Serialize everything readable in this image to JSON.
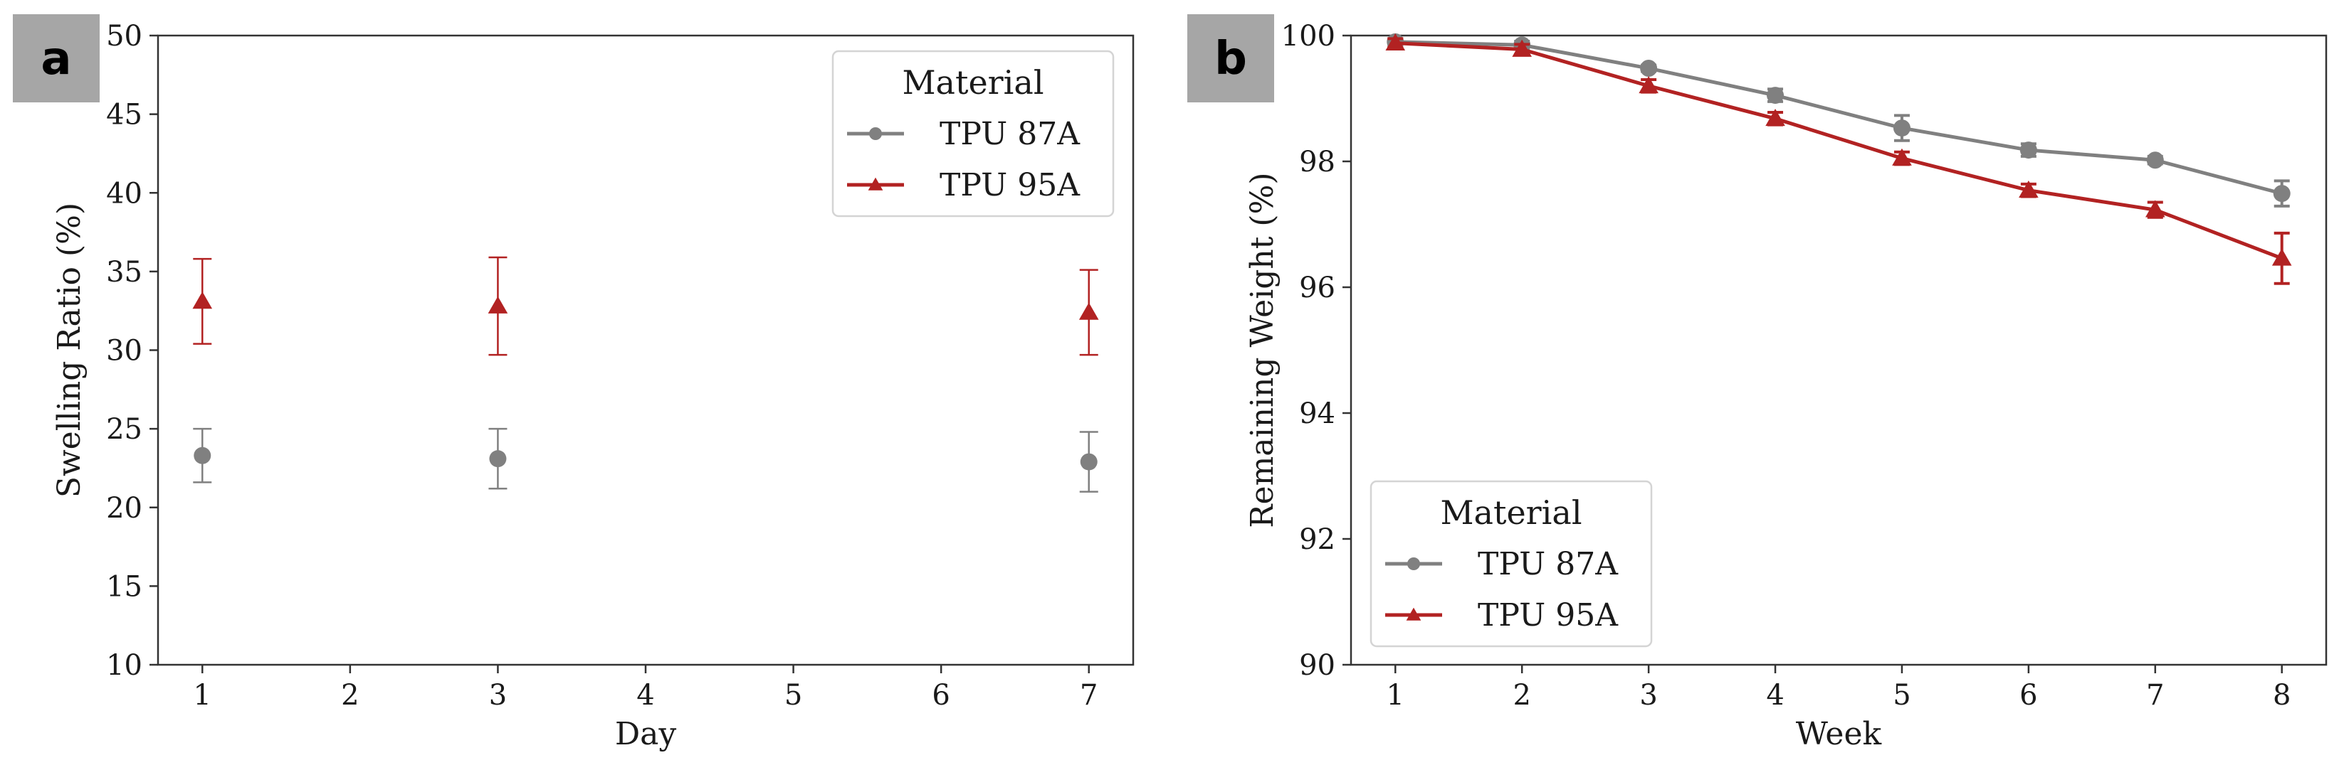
{
  "chart_data": [
    {
      "panel": "a",
      "type": "scatter",
      "title": "",
      "xlabel": "Day",
      "ylabel": "Swelling Ratio (%)",
      "xlim": [
        0.7,
        7.3
      ],
      "ylim": [
        10,
        50
      ],
      "xticks": [
        1,
        2,
        3,
        4,
        5,
        6,
        7
      ],
      "yticks": [
        10,
        15,
        20,
        25,
        30,
        35,
        40,
        45,
        50
      ],
      "legend_title": "Material",
      "legend_position": "top-right",
      "series": [
        {
          "name": "TPU 87A",
          "color": "#808080",
          "marker": "circle",
          "line": false,
          "x": [
            1,
            3,
            7
          ],
          "y": [
            23.3,
            23.1,
            22.9
          ],
          "err": [
            1.7,
            1.9,
            1.9
          ]
        },
        {
          "name": "TPU 95A",
          "color": "#b22222",
          "marker": "triangle",
          "line": false,
          "x": [
            1,
            3,
            7
          ],
          "y": [
            33.1,
            32.8,
            32.4
          ],
          "err": [
            2.7,
            3.1,
            2.7
          ]
        }
      ]
    },
    {
      "panel": "b",
      "type": "line",
      "title": "",
      "xlabel": "Week",
      "ylabel": "Remaining Weight (%)",
      "xlim": [
        0.65,
        8.35
      ],
      "ylim": [
        90,
        100
      ],
      "xticks": [
        1,
        2,
        3,
        4,
        5,
        6,
        7,
        8
      ],
      "yticks": [
        90,
        92,
        94,
        96,
        98,
        100
      ],
      "legend_title": "Material",
      "legend_position": "bottom-left",
      "series": [
        {
          "name": "TPU 87A",
          "color": "#808080",
          "marker": "circle",
          "line": true,
          "x": [
            1,
            2,
            3,
            4,
            5,
            6,
            7,
            8
          ],
          "y": [
            99.9,
            99.85,
            99.48,
            99.05,
            98.53,
            98.18,
            98.02,
            97.49
          ],
          "err": [
            0.05,
            0.06,
            0.05,
            0.1,
            0.2,
            0.1,
            0.06,
            0.2
          ]
        },
        {
          "name": "TPU 95A",
          "color": "#b22222",
          "marker": "triangle",
          "line": true,
          "x": [
            1,
            2,
            3,
            4,
            5,
            6,
            7,
            8
          ],
          "y": [
            99.88,
            99.78,
            99.2,
            98.68,
            98.05,
            97.54,
            97.23,
            96.46
          ],
          "err": [
            0.07,
            0.08,
            0.1,
            0.1,
            0.1,
            0.1,
            0.12,
            0.4
          ]
        }
      ]
    }
  ]
}
